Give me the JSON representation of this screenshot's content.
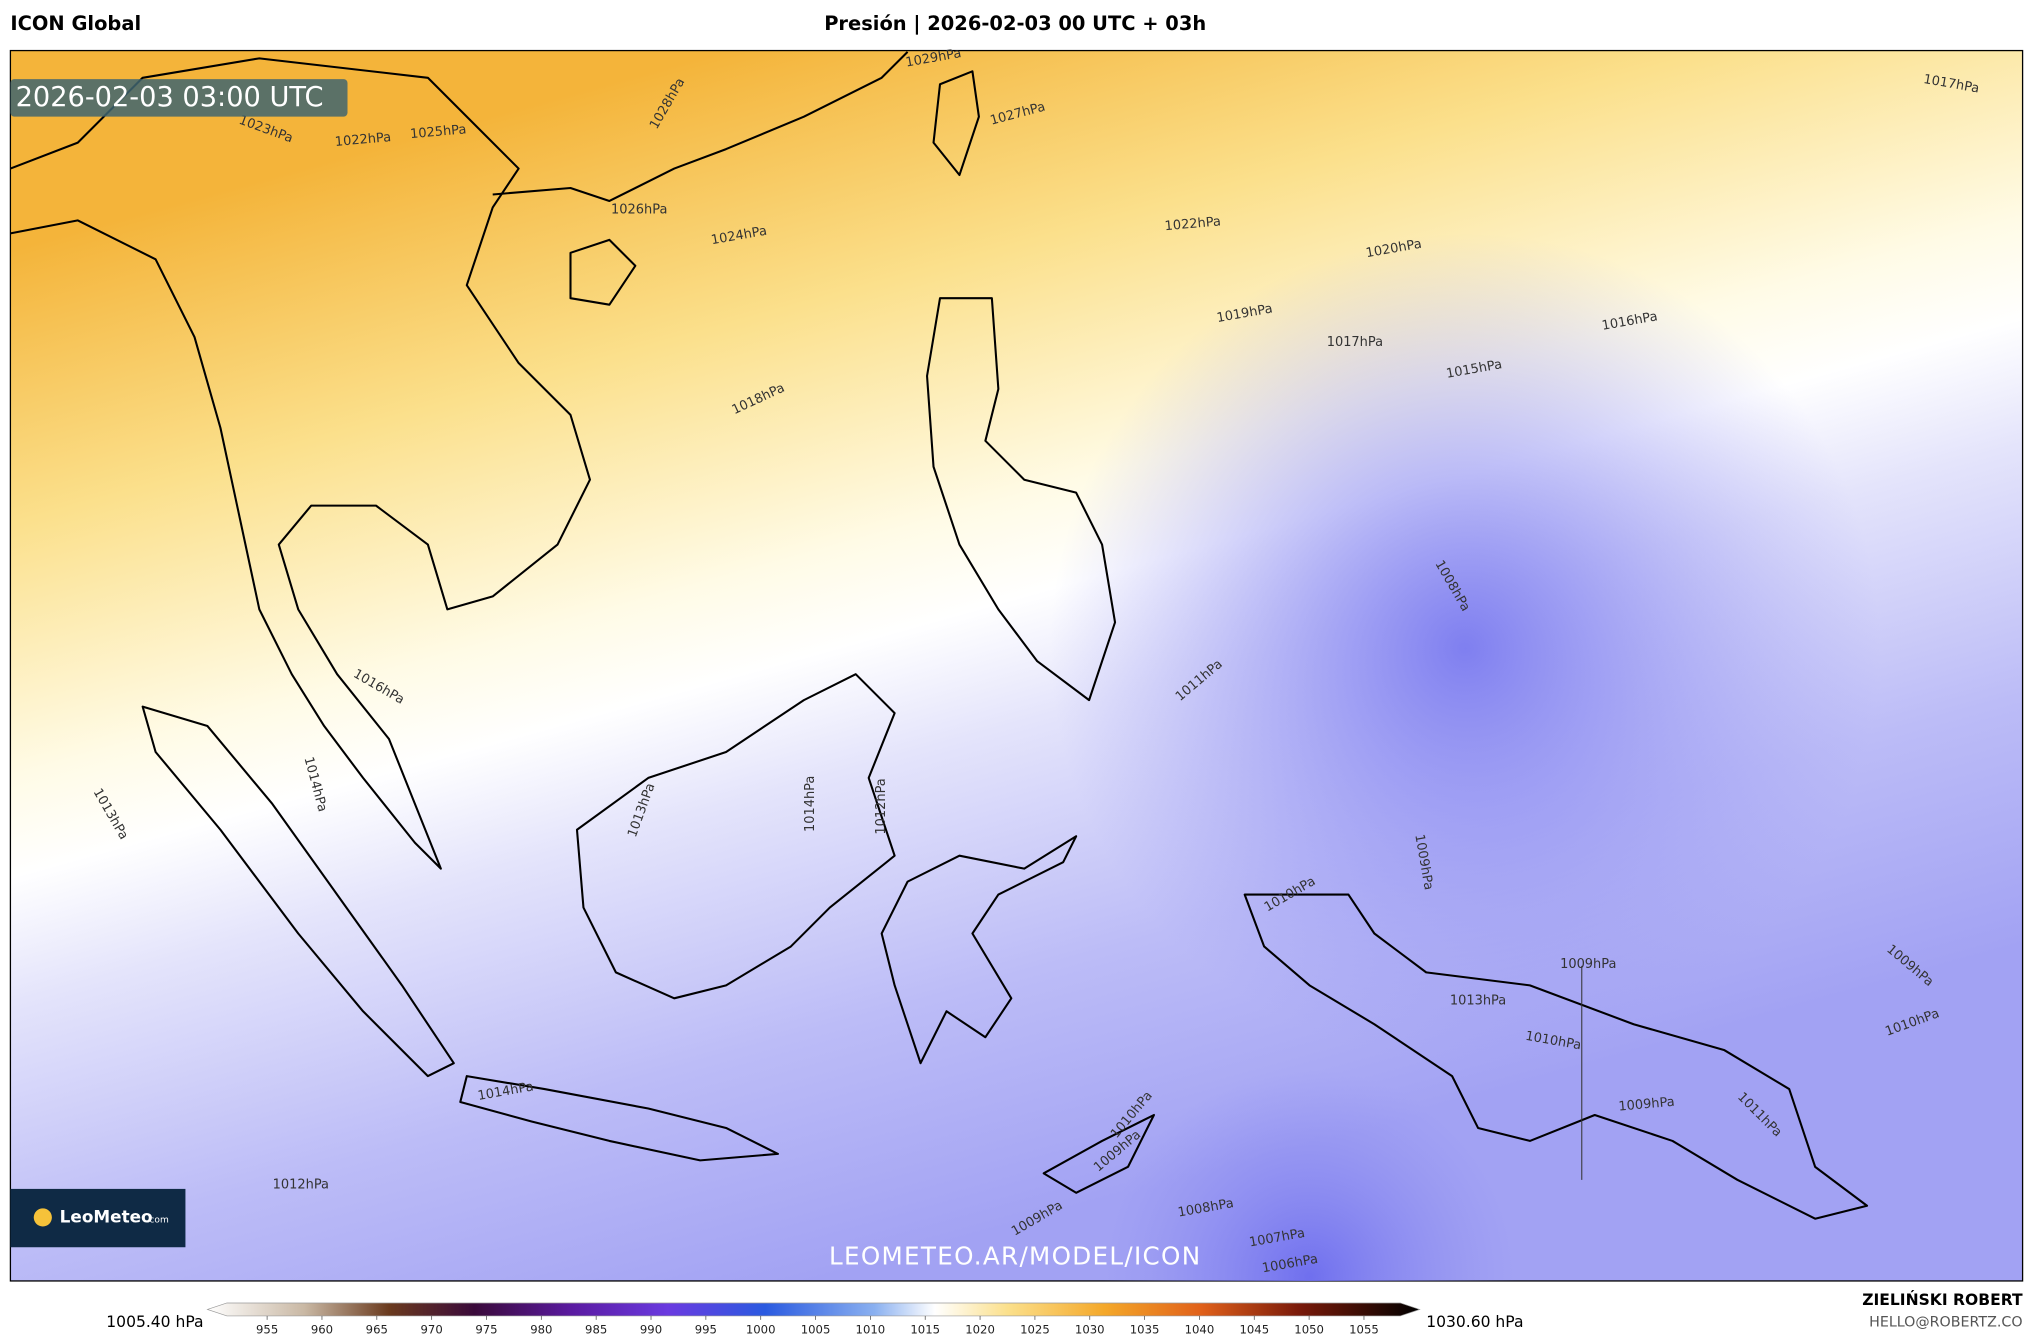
{
  "header": {
    "model": "ICON Global",
    "title": "Presión | 2026-02-03 00 UTC + 03h"
  },
  "map": {
    "timestamp": "2026-02-03 03:00 UTC",
    "watermark": "LEOMETEO.AR/MODEL/ICON",
    "logo": {
      "name": "LeoMeteo",
      "suffix": ".com"
    },
    "isobars": [
      "1029hPa",
      "1028hPa",
      "1027hPa",
      "1026hPa",
      "1025hPa",
      "1024hPa",
      "1023hPa",
      "1022hPa",
      "1022hPa",
      "1020hPa",
      "1019hPa",
      "1017hPa",
      "1016hPa",
      "1015hPa",
      "1018hPa",
      "1017hPa",
      "1016hPa",
      "1014hPa",
      "1013hPa",
      "1012hPa",
      "1014hPa",
      "1013hPa",
      "1011hPa",
      "1008hPa",
      "1009hPa",
      "1010hPa",
      "1009hPa",
      "1013hPa",
      "1010hPa",
      "1009hPa",
      "1011hPa",
      "1009hPa",
      "1010hPa",
      "1014hPa",
      "1012hPa",
      "1008hPa",
      "1007hPa",
      "1006hPa",
      "1010hPa",
      "1009hPa",
      "1009hPa"
    ]
  },
  "legend": {
    "min": "1005.40 hPa",
    "max": "1030.60 hPa",
    "ticks": [
      955,
      960,
      965,
      970,
      975,
      980,
      985,
      990,
      995,
      1000,
      1005,
      1010,
      1015,
      1020,
      1025,
      1030,
      1035,
      1040,
      1045,
      1050,
      1055
    ]
  },
  "footer": {
    "author": "ZIELIŃSKI ROBERT",
    "email": "HELLO@ROBERTZ.CO"
  }
}
